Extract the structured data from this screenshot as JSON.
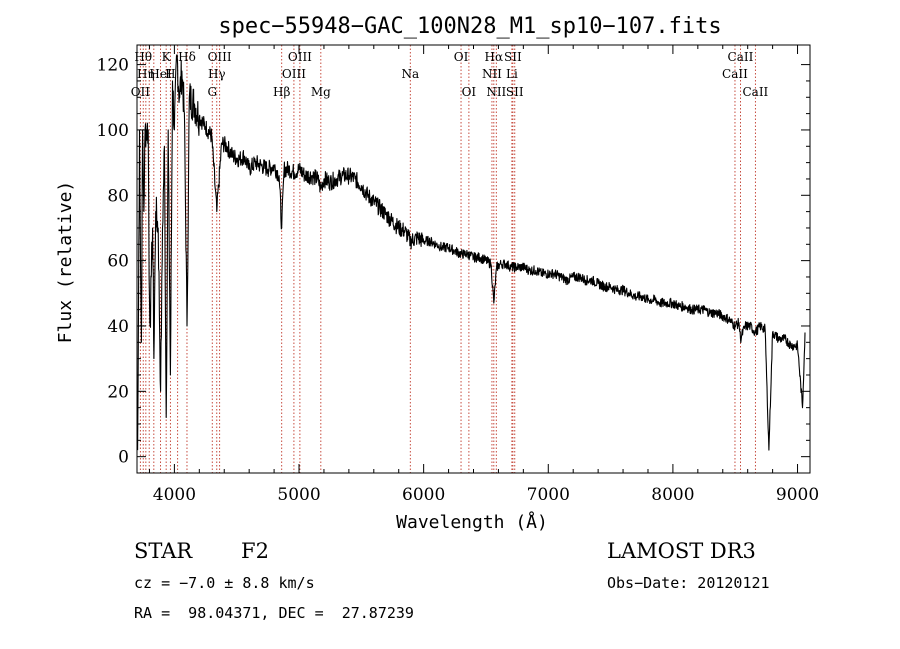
{
  "chart_data": {
    "type": "line",
    "title": "spec−55948−GAC_100N28_M1_sp10−107.fits",
    "xlabel": "Wavelength (Å)",
    "ylabel": "Flux (relative)",
    "xlim": [
      3700,
      9100
    ],
    "ylim": [
      -5,
      126
    ],
    "x_ticks": [
      4000,
      5000,
      6000,
      7000,
      8000,
      9000
    ],
    "y_ticks": [
      0,
      20,
      40,
      60,
      80,
      100,
      120
    ],
    "line_color": "#000000",
    "marker_color": "#c0392b",
    "series": [
      {
        "name": "spectrum",
        "anchors": [
          [
            3705,
            2
          ],
          [
            3712,
            45
          ],
          [
            3720,
            100
          ],
          [
            3728,
            60
          ],
          [
            3735,
            35
          ],
          [
            3745,
            100
          ],
          [
            3755,
            75
          ],
          [
            3765,
            100
          ],
          [
            3780,
            100
          ],
          [
            3790,
            100
          ],
          [
            3797,
            55
          ],
          [
            3805,
            40
          ],
          [
            3815,
            55
          ],
          [
            3825,
            70
          ],
          [
            3836,
            30
          ],
          [
            3850,
            75
          ],
          [
            3870,
            70
          ],
          [
            3889,
            20
          ],
          [
            3905,
            70
          ],
          [
            3920,
            95
          ],
          [
            3934,
            12
          ],
          [
            3950,
            100
          ],
          [
            3968,
            25
          ],
          [
            3985,
            115
          ],
          [
            4000,
            100
          ],
          [
            4020,
            123
          ],
          [
            4040,
            110
          ],
          [
            4060,
            118
          ],
          [
            4080,
            105
          ],
          [
            4101,
            40
          ],
          [
            4120,
            110
          ],
          [
            4160,
            108
          ],
          [
            4200,
            104
          ],
          [
            4250,
            101
          ],
          [
            4300,
            98
          ],
          [
            4340,
            75
          ],
          [
            4380,
            96
          ],
          [
            4420,
            95
          ],
          [
            4470,
            92
          ],
          [
            4520,
            91
          ],
          [
            4560,
            92
          ],
          [
            4600,
            88
          ],
          [
            4650,
            90
          ],
          [
            4700,
            89
          ],
          [
            4750,
            88
          ],
          [
            4800,
            89
          ],
          [
            4840,
            86
          ],
          [
            4861,
            70
          ],
          [
            4880,
            88
          ],
          [
            4920,
            88
          ],
          [
            4960,
            87
          ],
          [
            5000,
            88
          ],
          [
            5050,
            86
          ],
          [
            5100,
            86
          ],
          [
            5150,
            85
          ],
          [
            5173,
            82
          ],
          [
            5200,
            85
          ],
          [
            5250,
            84
          ],
          [
            5300,
            85
          ],
          [
            5350,
            86
          ],
          [
            5400,
            86
          ],
          [
            5450,
            85
          ],
          [
            5500,
            83
          ],
          [
            5550,
            80
          ],
          [
            5600,
            78
          ],
          [
            5650,
            76
          ],
          [
            5700,
            74
          ],
          [
            5750,
            72
          ],
          [
            5800,
            70
          ],
          [
            5850,
            69
          ],
          [
            5893,
            66
          ],
          [
            5950,
            67
          ],
          [
            6000,
            66
          ],
          [
            6050,
            66
          ],
          [
            6100,
            65
          ],
          [
            6150,
            64
          ],
          [
            6200,
            64
          ],
          [
            6250,
            63
          ],
          [
            6300,
            62
          ],
          [
            6350,
            62
          ],
          [
            6400,
            61
          ],
          [
            6450,
            61
          ],
          [
            6500,
            60
          ],
          [
            6540,
            59
          ],
          [
            6563,
            47
          ],
          [
            6585,
            58
          ],
          [
            6620,
            59
          ],
          [
            6660,
            59
          ],
          [
            6700,
            58
          ],
          [
            6750,
            58
          ],
          [
            6800,
            58
          ],
          [
            6850,
            57
          ],
          [
            6900,
            57
          ],
          [
            6950,
            56
          ],
          [
            7000,
            56
          ],
          [
            7050,
            56
          ],
          [
            7100,
            55
          ],
          [
            7150,
            54
          ],
          [
            7200,
            55
          ],
          [
            7250,
            55
          ],
          [
            7300,
            54
          ],
          [
            7350,
            54
          ],
          [
            7400,
            53
          ],
          [
            7450,
            52
          ],
          [
            7500,
            52
          ],
          [
            7550,
            51
          ],
          [
            7600,
            51
          ],
          [
            7650,
            50
          ],
          [
            7700,
            49
          ],
          [
            7750,
            49
          ],
          [
            7800,
            48
          ],
          [
            7850,
            48
          ],
          [
            7900,
            47
          ],
          [
            7950,
            47
          ],
          [
            8000,
            47
          ],
          [
            8050,
            46
          ],
          [
            8100,
            46
          ],
          [
            8150,
            45
          ],
          [
            8200,
            45
          ],
          [
            8250,
            45
          ],
          [
            8300,
            44
          ],
          [
            8350,
            44
          ],
          [
            8400,
            43
          ],
          [
            8450,
            42
          ],
          [
            8498,
            40
          ],
          [
            8530,
            41
          ],
          [
            8542,
            36
          ],
          [
            8580,
            40
          ],
          [
            8620,
            40
          ],
          [
            8662,
            38
          ],
          [
            8700,
            40
          ],
          [
            8740,
            39
          ],
          [
            8770,
            2
          ],
          [
            8800,
            38
          ],
          [
            8850,
            36
          ],
          [
            8900,
            36
          ],
          [
            8950,
            34
          ],
          [
            9000,
            34
          ],
          [
            9040,
            15
          ],
          [
            9060,
            38
          ]
        ]
      }
    ],
    "lines": [
      {
        "w": 3727,
        "label": "OII",
        "row": 2
      },
      {
        "w": 3750,
        "label": "Hθ",
        "row": 0
      },
      {
        "w": 3771,
        "label": "Hη",
        "row": 1
      },
      {
        "w": 3798,
        "label": "",
        "row": -1
      },
      {
        "w": 3835,
        "label": "",
        "row": -1
      },
      {
        "w": 3889,
        "label": "HeI",
        "row": 1
      },
      {
        "w": 3934,
        "label": "K",
        "row": 0
      },
      {
        "w": 3968,
        "label": "H",
        "row": 1
      },
      {
        "w": 4026,
        "label": "",
        "row": -1
      },
      {
        "w": 4101,
        "label": "Hδ",
        "row": 0
      },
      {
        "w": 4304,
        "label": "G",
        "row": 2
      },
      {
        "w": 4340,
        "label": "Hγ",
        "row": 1
      },
      {
        "w": 4363,
        "label": "OIII",
        "row": 0
      },
      {
        "w": 4861,
        "label": "Hβ",
        "row": 2
      },
      {
        "w": 4959,
        "label": "OIII",
        "row": 1
      },
      {
        "w": 5007,
        "label": "OIII",
        "row": 0
      },
      {
        "w": 5175,
        "label": "Mg",
        "row": 2
      },
      {
        "w": 5893,
        "label": "Na",
        "row": 1
      },
      {
        "w": 6300,
        "label": "OI",
        "row": 0
      },
      {
        "w": 6363,
        "label": "OI",
        "row": 2
      },
      {
        "w": 6548,
        "label": "NII",
        "row": 1
      },
      {
        "w": 6563,
        "label": "Hα",
        "row": 0
      },
      {
        "w": 6583,
        "label": "NII",
        "row": 2
      },
      {
        "w": 6708,
        "label": "Li",
        "row": 1
      },
      {
        "w": 6716,
        "label": "SII",
        "row": 0
      },
      {
        "w": 6731,
        "label": "SII",
        "row": 2
      },
      {
        "w": 8498,
        "label": "CaII",
        "row": 1
      },
      {
        "w": 8542,
        "label": "CaII",
        "row": 0
      },
      {
        "w": 8662,
        "label": "CaII",
        "row": 2
      }
    ]
  },
  "info": {
    "class_label": "STAR",
    "subclass": "F2",
    "cz": "cz = −7.0 ± 8.8 km/s",
    "radec": "RA =  98.04371, DEC =  27.87239",
    "survey": "LAMOST DR3",
    "obs_date": "Obs−Date: 20120121"
  }
}
